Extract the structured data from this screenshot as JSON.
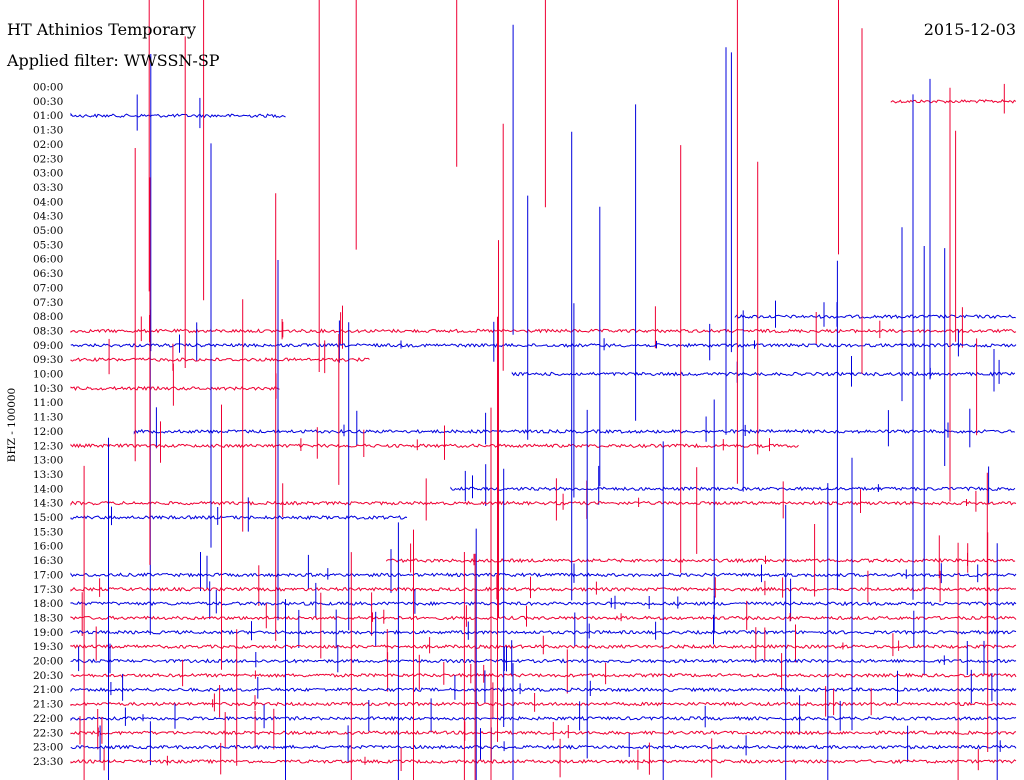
{
  "header": {
    "station": "HT Athinios Temporary",
    "date": "2015-12-03",
    "filter": "Applied filter: WWSSN-SP"
  },
  "chart_data": {
    "type": "line",
    "title": "HT Athinios Temporary",
    "subtitle": "Applied filter: WWSSN-SP",
    "ylabel": "BHZ - 100000",
    "colors": {
      "even_hour": "#0000dd",
      "half_hour": "#ee0033"
    },
    "rows": [
      "00:00",
      "00:30",
      "01:00",
      "01:30",
      "02:00",
      "02:30",
      "03:00",
      "03:30",
      "04:00",
      "04:30",
      "05:00",
      "05:30",
      "06:00",
      "06:30",
      "07:00",
      "07:30",
      "08:00",
      "08:30",
      "09:00",
      "09:30",
      "10:00",
      "10:30",
      "11:00",
      "11:30",
      "12:00",
      "12:30",
      "13:00",
      "13:30",
      "14:00",
      "14:30",
      "15:00",
      "15:30",
      "16:00",
      "16:30",
      "17:00",
      "17:30",
      "18:00",
      "18:30",
      "19:00",
      "19:30",
      "20:00",
      "20:30",
      "21:00",
      "21:30",
      "22:00",
      "22:30",
      "23:00",
      "23:30"
    ],
    "traces": [
      {
        "row": "00:30",
        "start": 0.868,
        "end": 1.0
      },
      {
        "row": "01:00",
        "start": 0.0,
        "end": 0.228
      },
      {
        "row": "08:00",
        "start": 0.703,
        "end": 1.0
      },
      {
        "row": "08:30",
        "start": 0.0,
        "end": 1.0
      },
      {
        "row": "09:00",
        "start": 0.0,
        "end": 1.0
      },
      {
        "row": "09:30",
        "start": 0.0,
        "end": 0.317
      },
      {
        "row": "10:00",
        "start": 0.467,
        "end": 1.0
      },
      {
        "row": "10:30",
        "start": 0.0,
        "end": 0.222
      },
      {
        "row": "12:00",
        "start": 0.067,
        "end": 1.0
      },
      {
        "row": "12:30",
        "start": 0.0,
        "end": 0.77
      },
      {
        "row": "14:00",
        "start": 0.402,
        "end": 1.0
      },
      {
        "row": "14:30",
        "start": 0.0,
        "end": 1.0
      },
      {
        "row": "15:00",
        "start": 0.0,
        "end": 0.356
      },
      {
        "row": "16:30",
        "start": 0.334,
        "end": 1.0
      },
      {
        "row": "17:00",
        "start": 0.0,
        "end": 1.0
      },
      {
        "row": "17:30",
        "start": 0.0,
        "end": 1.0
      },
      {
        "row": "18:00",
        "start": 0.0,
        "end": 1.0
      },
      {
        "row": "18:30",
        "start": 0.0,
        "end": 1.0
      },
      {
        "row": "19:00",
        "start": 0.0,
        "end": 1.0
      },
      {
        "row": "19:30",
        "start": 0.0,
        "end": 1.0
      },
      {
        "row": "20:00",
        "start": 0.0,
        "end": 1.0
      },
      {
        "row": "20:30",
        "start": 0.0,
        "end": 1.0
      },
      {
        "row": "21:00",
        "start": 0.0,
        "end": 1.0
      },
      {
        "row": "21:30",
        "start": 0.0,
        "end": 1.0
      },
      {
        "row": "22:00",
        "start": 0.0,
        "end": 1.0
      },
      {
        "row": "22:30",
        "start": 0.0,
        "end": 1.0
      },
      {
        "row": "23:00",
        "start": 0.0,
        "end": 1.0
      },
      {
        "row": "23:30",
        "start": 0.0,
        "end": 1.0
      }
    ]
  }
}
